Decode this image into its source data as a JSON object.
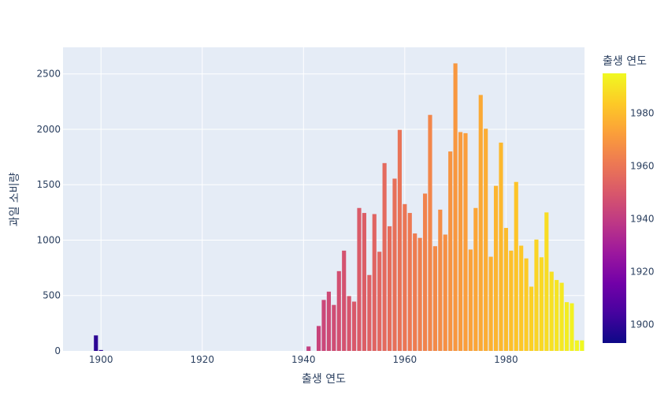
{
  "chart_data": {
    "type": "bar",
    "xlabel": "출생 연도",
    "ylabel": "과일 소비량",
    "xlim": [
      1892.5,
      1995.5
    ],
    "ylim": [
      0,
      2740
    ],
    "x_ticks": [
      1900,
      1920,
      1940,
      1960,
      1980
    ],
    "y_ticks": [
      0,
      500,
      1000,
      1500,
      2000,
      2500
    ],
    "grid": true,
    "colorbar": {
      "title": "출생 연도",
      "range": [
        1893,
        1995
      ],
      "ticks": [
        1900,
        1920,
        1940,
        1960,
        1980
      ],
      "colorscale": [
        "#0d0887",
        "#46039f",
        "#7201a8",
        "#9c179e",
        "#bd3786",
        "#d8576b",
        "#ed7953",
        "#fb9f3a",
        "#fdca26",
        "#f0f921"
      ]
    },
    "x": [
      1899,
      1900,
      1941,
      1943,
      1944,
      1945,
      1946,
      1947,
      1948,
      1949,
      1950,
      1951,
      1952,
      1953,
      1954,
      1955,
      1956,
      1957,
      1958,
      1959,
      1960,
      1961,
      1962,
      1963,
      1964,
      1965,
      1966,
      1967,
      1968,
      1969,
      1970,
      1971,
      1972,
      1973,
      1974,
      1975,
      1976,
      1977,
      1978,
      1979,
      1980,
      1981,
      1982,
      1983,
      1984,
      1985,
      1986,
      1987,
      1988,
      1989,
      1990,
      1991,
      1992,
      1993,
      1994,
      1995
    ],
    "values": [
      140,
      8,
      40,
      225,
      460,
      535,
      415,
      720,
      905,
      495,
      445,
      1290,
      1245,
      685,
      1235,
      895,
      1695,
      1125,
      1555,
      1995,
      1325,
      1245,
      1060,
      1020,
      1420,
      2130,
      945,
      1275,
      1050,
      1800,
      2595,
      1975,
      1965,
      915,
      1290,
      2310,
      2005,
      850,
      1490,
      1880,
      1110,
      905,
      1525,
      950,
      835,
      580,
      1005,
      845,
      1250,
      715,
      640,
      615,
      440,
      430,
      95,
      95
    ]
  }
}
